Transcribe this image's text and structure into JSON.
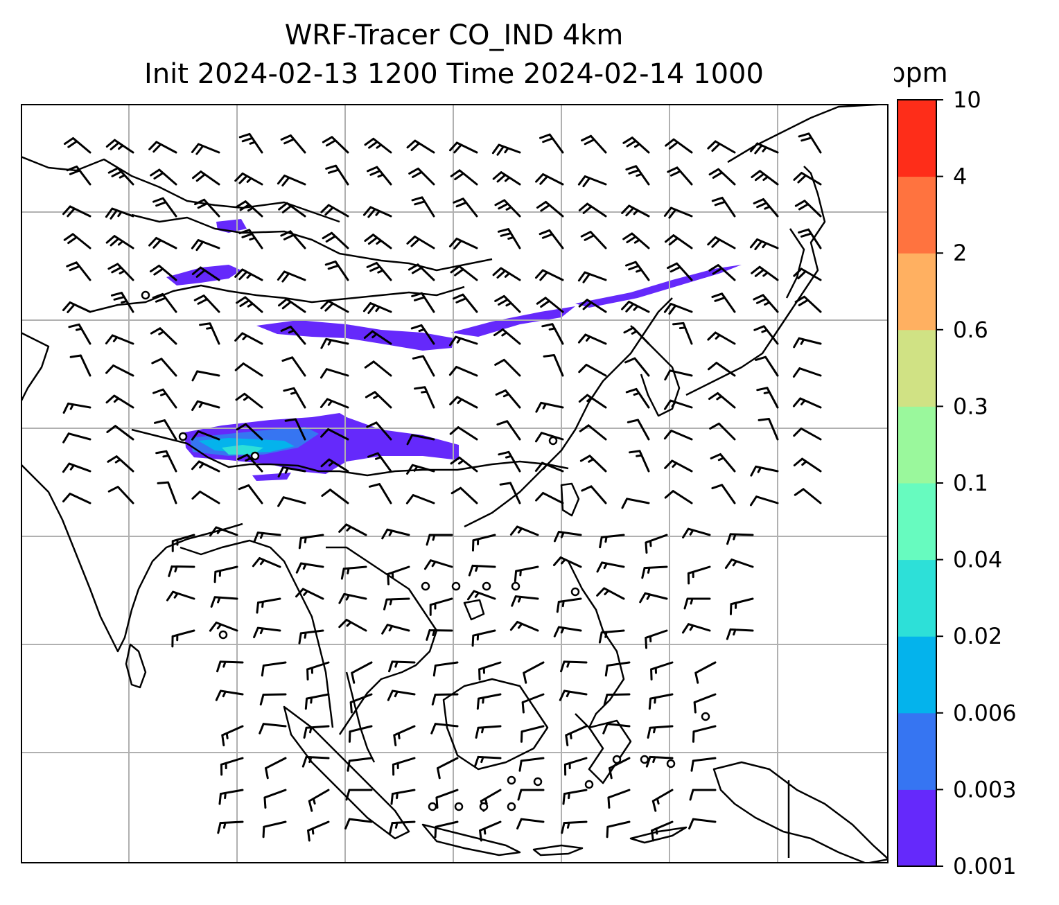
{
  "title": {
    "line1": "WRF-Tracer CO_IND 4km",
    "line2": "Init 2024-02-13 1200 Time 2024-02-14 1000"
  },
  "colorbar": {
    "unit": "ppm",
    "levels": [
      "0.001",
      "0.003",
      "0.006",
      "0.02",
      "0.04",
      "0.1",
      "0.3",
      "0.6",
      "2",
      "4",
      "10"
    ],
    "colors": [
      "#6529fb",
      "#3675f2",
      "#04b3ec",
      "#2de0d8",
      "#67fbbf",
      "#9af89c",
      "#d0e284",
      "#ffb061",
      "#ff733f",
      "#fe2d19"
    ]
  },
  "map": {
    "gridlines": true,
    "gridline_color": "#b0b0b0",
    "coastline_color": "#000000",
    "field_colors_present": [
      "#6529fb",
      "#3675f2",
      "#04b3ec",
      "#2de0d8"
    ],
    "wind_barbs": true,
    "calm_markers": "circle"
  }
}
